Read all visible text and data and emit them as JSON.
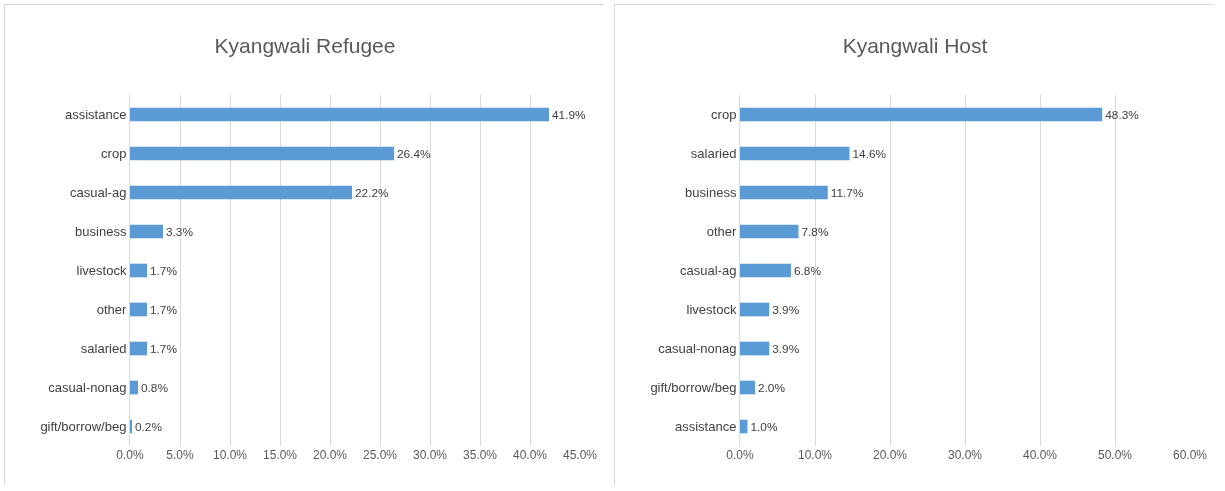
{
  "chart_data": [
    {
      "type": "bar",
      "orientation": "horizontal",
      "title": "Kyangwali Refugee",
      "categories": [
        "assistance",
        "crop",
        "casual-ag",
        "business",
        "livestock",
        "other",
        "salaried",
        "casual-nonag",
        "gift/borrow/beg"
      ],
      "values": [
        41.9,
        26.4,
        22.2,
        3.3,
        1.7,
        1.7,
        1.7,
        0.8,
        0.2
      ],
      "value_labels": [
        "41.9%",
        "26.4%",
        "22.2%",
        "3.3%",
        "1.7%",
        "1.7%",
        "1.7%",
        "0.8%",
        "0.2%"
      ],
      "color": "#5b9bd5",
      "xlim": [
        0,
        45
      ],
      "xticks": [
        {
          "value": 0,
          "label": "0.0%"
        },
        {
          "value": 5,
          "label": "5.0%"
        },
        {
          "value": 10,
          "label": "10.0%"
        },
        {
          "value": 15,
          "label": "15.0%"
        },
        {
          "value": 20,
          "label": "20.0%"
        },
        {
          "value": 25,
          "label": "25.0%"
        },
        {
          "value": 30,
          "label": "30.0%"
        },
        {
          "value": 35,
          "label": "35.0%"
        },
        {
          "value": 40,
          "label": "40.0%"
        },
        {
          "value": 45,
          "label": "45.0%"
        }
      ],
      "grid": "x"
    },
    {
      "type": "bar",
      "orientation": "horizontal",
      "title": "Kyangwali Host",
      "categories": [
        "crop",
        "salaried",
        "business",
        "other",
        "casual-ag",
        "livestock",
        "casual-nonag",
        "gift/borrow/beg",
        "assistance"
      ],
      "values": [
        48.3,
        14.6,
        11.7,
        7.8,
        6.8,
        3.9,
        3.9,
        2.0,
        1.0
      ],
      "value_labels": [
        "48.3%",
        "14.6%",
        "11.7%",
        "7.8%",
        "6.8%",
        "3.9%",
        "3.9%",
        "2.0%",
        "1.0%"
      ],
      "color": "#5b9bd5",
      "xlim": [
        0,
        60
      ],
      "xticks": [
        {
          "value": 0,
          "label": "0.0%"
        },
        {
          "value": 10,
          "label": "10.0%"
        },
        {
          "value": 20,
          "label": "20.0%"
        },
        {
          "value": 30,
          "label": "30.0%"
        },
        {
          "value": 40,
          "label": "40.0%"
        },
        {
          "value": 50,
          "label": "50.0%"
        },
        {
          "value": 60,
          "label": "60.0%"
        }
      ],
      "grid": "x"
    }
  ]
}
